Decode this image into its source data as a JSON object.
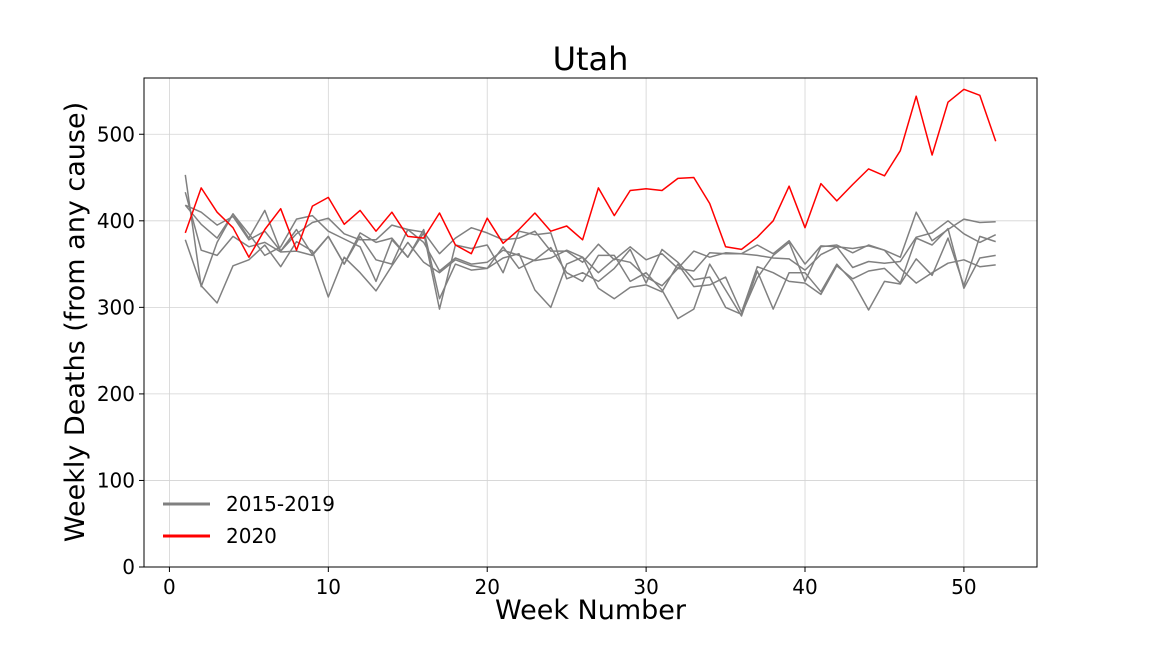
{
  "chart_data": {
    "type": "line",
    "title": "Utah",
    "xlabel": "Week Number",
    "ylabel": "Weekly Deaths (from any cause)",
    "xlim": [
      -1.6,
      54.6
    ],
    "ylim": [
      0,
      565
    ],
    "x_ticks": [
      0,
      10,
      20,
      30,
      40,
      50
    ],
    "y_ticks": [
      0,
      100,
      200,
      300,
      400,
      500
    ],
    "grid": true,
    "legend_position": "lower-left",
    "legend": [
      {
        "label": "2015-2019",
        "color": "#808080"
      },
      {
        "label": "2020",
        "color": "#ff0000"
      }
    ],
    "x": [
      1,
      2,
      3,
      4,
      5,
      6,
      7,
      8,
      9,
      10,
      11,
      12,
      13,
      14,
      15,
      16,
      17,
      18,
      19,
      20,
      21,
      22,
      23,
      24,
      25,
      26,
      27,
      28,
      29,
      30,
      31,
      32,
      33,
      34,
      35,
      36,
      37,
      38,
      39,
      40,
      41,
      42,
      43,
      44,
      45,
      46,
      47,
      48,
      49,
      50,
      51,
      52
    ],
    "series": [
      {
        "name": "2015-2019",
        "color": "#808080",
        "values": [
          453,
          324,
          375,
          408,
          380,
          412,
          365,
          390,
          361,
          382,
          350,
          386,
          375,
          380,
          358,
          390,
          310,
          350,
          343,
          345,
          370,
          345,
          355,
          369,
          340,
          330,
          360,
          360,
          330,
          340,
          320,
          287,
          298,
          350,
          320,
          290,
          342,
          298,
          340,
          340,
          318,
          350,
          330,
          297,
          330,
          327,
          356,
          337,
          380,
          325,
          382,
          376
        ]
      },
      {
        "name": "2015-2019",
        "color": "#808080",
        "values": [
          378,
          325,
          305,
          348,
          355,
          372,
          347,
          376,
          365,
          312,
          358,
          340,
          319,
          348,
          375,
          352,
          340,
          355,
          348,
          345,
          357,
          362,
          320,
          300,
          350,
          358,
          322,
          310,
          323,
          326,
          318,
          350,
          324,
          326,
          335,
          294,
          347,
          340,
          330,
          328,
          315,
          348,
          333,
          342,
          345,
          328,
          380,
          372,
          391,
          322,
          357,
          360
        ]
      },
      {
        "name": "2015-2019",
        "color": "#808080",
        "values": [
          433,
          366,
          360,
          382,
          370,
          375,
          364,
          365,
          360,
          382,
          350,
          382,
          355,
          350,
          390,
          375,
          342,
          357,
          350,
          352,
          366,
          360,
          354,
          357,
          366,
          358,
          340,
          356,
          352,
          335,
          325,
          345,
          342,
          363,
          362,
          362,
          360,
          357,
          356,
          343,
          361,
          370,
          346,
          353,
          351,
          353,
          381,
          386,
          400,
          385,
          375,
          384
        ]
      },
      {
        "name": "2015-2019",
        "color": "#808080",
        "values": [
          418,
          410,
          395,
          405,
          378,
          388,
          365,
          385,
          398,
          403,
          385,
          378,
          378,
          395,
          390,
          387,
          362,
          380,
          392,
          386,
          378,
          380,
          388,
          365,
          365,
          352,
          373,
          355,
          370,
          355,
          362,
          345,
          365,
          358,
          363,
          362,
          372,
          362,
          377,
          350,
          371,
          370,
          368,
          371,
          366,
          358,
          410,
          377,
          390,
          402,
          398,
          399
        ]
      },
      {
        "name": "2015-2019",
        "color": "#808080",
        "values": [
          418,
          396,
          380,
          408,
          385,
          360,
          370,
          402,
          406,
          388,
          379,
          370,
          330,
          378,
          358,
          386,
          298,
          372,
          368,
          372,
          340,
          388,
          384,
          386,
          333,
          340,
          330,
          345,
          367,
          328,
          367,
          352,
          332,
          335,
          300,
          292,
          334,
          360,
          375,
          330,
          370,
          372,
          363,
          372,
          366,
          345,
          328,
          340,
          351,
          355,
          347,
          349
        ]
      },
      {
        "name": "2020",
        "color": "#ff0000",
        "values": [
          386,
          438,
          410,
          392,
          358,
          390,
          414,
          366,
          417,
          427,
          396,
          412,
          388,
          410,
          382,
          380,
          409,
          372,
          362,
          403,
          374,
          390,
          409,
          388,
          394,
          378,
          438,
          406,
          435,
          437,
          435,
          449,
          450,
          420,
          370,
          367,
          381,
          400,
          440,
          392,
          443,
          423,
          442,
          460,
          452,
          481,
          544,
          476,
          537,
          552,
          545,
          492
        ]
      }
    ]
  }
}
